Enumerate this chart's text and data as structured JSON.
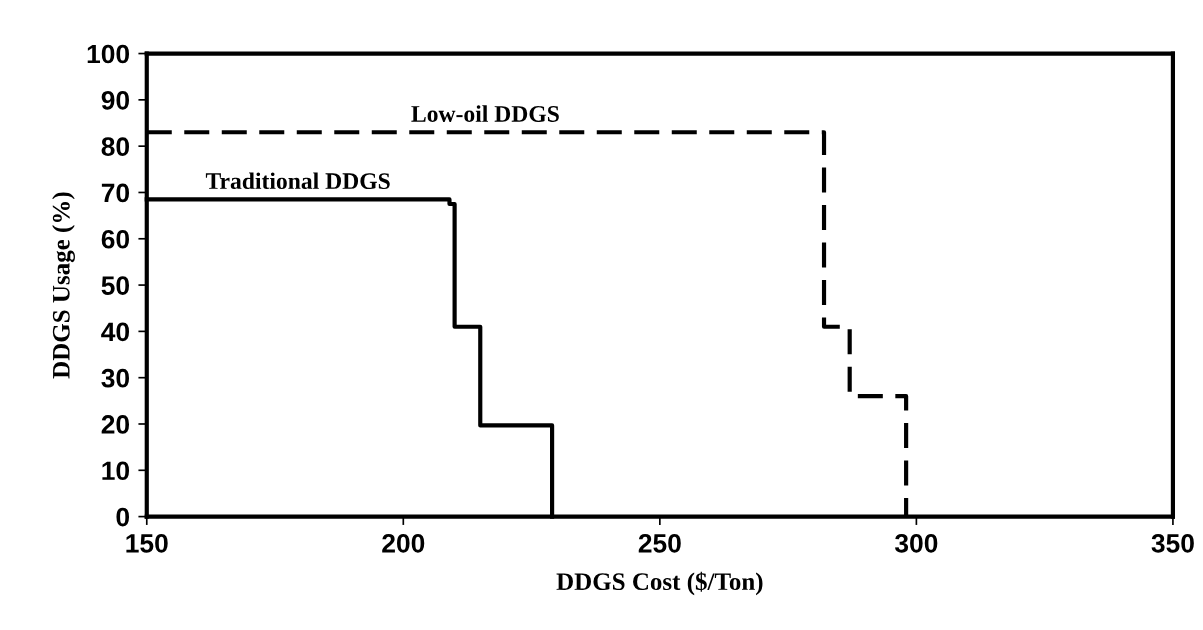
{
  "chart_data": {
    "type": "step",
    "xlabel": "DDGS Cost ($/Ton)",
    "ylabel": "DDGS Usage (%)",
    "series": [
      {
        "name": "Traditional DDGS",
        "color": "#000000",
        "line_style": "solid",
        "x": [
          150,
          209,
          210,
          215,
          229
        ],
        "values": [
          68.5,
          67.5,
          41,
          19.7,
          0
        ]
      },
      {
        "name": "Low-oil DDGS",
        "color": "#000000",
        "line_style": "dashed",
        "x": [
          150,
          282,
          287,
          298
        ],
        "values": [
          83,
          41,
          26,
          0
        ]
      }
    ],
    "xlim": [
      150,
      350
    ],
    "xticks": [
      150,
      200,
      250,
      300,
      350
    ],
    "ylim": [
      0,
      100
    ],
    "yticks": [
      0,
      10,
      20,
      30,
      40,
      50,
      60,
      70,
      80,
      90,
      100
    ],
    "grid": false,
    "legend": false
  }
}
